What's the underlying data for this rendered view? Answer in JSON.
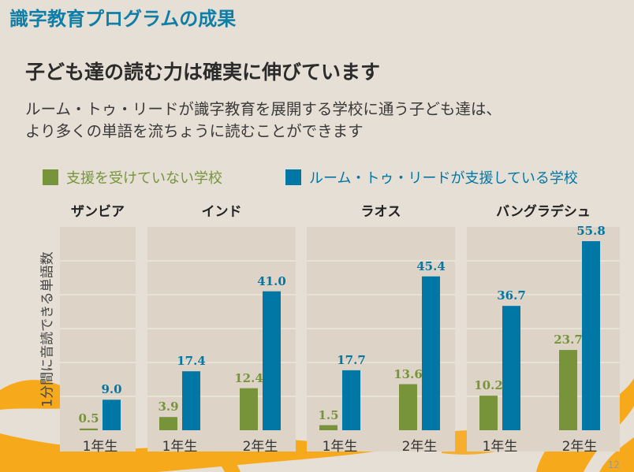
{
  "slide": {
    "title": "識字教育プログラムの成果",
    "headline": "子ども達の読む力は確実に伸びています",
    "subtitle_line1": "ルーム・トゥ・リードが識字教育を展開する学校に通う子ども達は、",
    "subtitle_line2": "より多くの単語を流ちょうに読むことができます",
    "page_number": "12"
  },
  "colors": {
    "green": "#78943b",
    "blue": "#0077a4",
    "accent_orange": "#f7a91c",
    "title": "#0f7ea6",
    "panel": "#ddd4c7"
  },
  "chart_data": {
    "type": "bar",
    "ylabel": "1分間に音読できる単語数",
    "ylim": [
      0,
      60
    ],
    "grid": true,
    "legend_placement": "top",
    "series_names": [
      "支援を受けていない学校",
      "ルーム・トゥ・リードが支援している学校"
    ],
    "panels": [
      {
        "title": "ザンビア",
        "categories": [
          "1年生"
        ],
        "series": [
          {
            "name": "支援を受けていない学校",
            "values": [
              0.5
            ]
          },
          {
            "name": "ルーム・トゥ・リードが支援している学校",
            "values": [
              9.0
            ]
          }
        ],
        "labels": [
          [
            "0.5"
          ],
          [
            "9.0"
          ]
        ]
      },
      {
        "title": "インド",
        "categories": [
          "1年生",
          "2年生"
        ],
        "series": [
          {
            "name": "支援を受けていない学校",
            "values": [
              3.9,
              12.4
            ]
          },
          {
            "name": "ルーム・トゥ・リードが支援している学校",
            "values": [
              17.4,
              41.0
            ]
          }
        ],
        "labels": [
          [
            "3.9",
            "12.4"
          ],
          [
            "17.4",
            "41.0"
          ]
        ]
      },
      {
        "title": "ラオス",
        "categories": [
          "1年生",
          "2年生"
        ],
        "series": [
          {
            "name": "支援を受けていない学校",
            "values": [
              1.5,
              13.6
            ]
          },
          {
            "name": "ルーム・トゥ・リードが支援している学校",
            "values": [
              17.7,
              45.4
            ]
          }
        ],
        "labels": [
          [
            "1.5",
            "13.6"
          ],
          [
            "17.7",
            "45.4"
          ]
        ]
      },
      {
        "title": "バングラデシュ",
        "categories": [
          "1年生",
          "2年生"
        ],
        "series": [
          {
            "name": "支援を受けていない学校",
            "values": [
              10.2,
              23.7
            ]
          },
          {
            "name": "ルーム・トゥ・リードが支援している学校",
            "values": [
              36.7,
              55.8
            ]
          }
        ],
        "labels": [
          [
            "10.2",
            "23.7"
          ],
          [
            "36.7",
            "55.8"
          ]
        ]
      }
    ]
  }
}
